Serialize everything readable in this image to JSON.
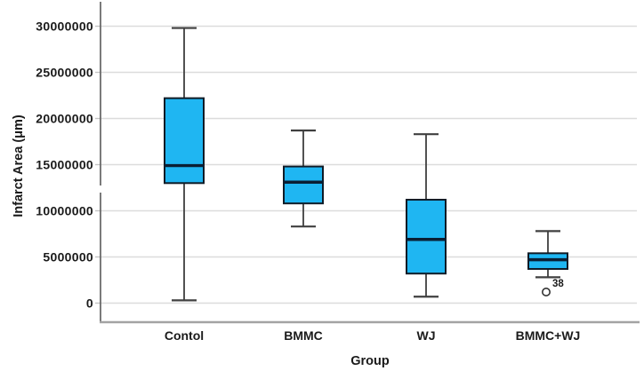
{
  "chart_data": {
    "type": "boxplot",
    "title": "",
    "xlabel": "Group",
    "ylabel": "Infarct Area  (μm)",
    "categories": [
      "Contol",
      "BMMC",
      "WJ",
      "BMMC+WJ"
    ],
    "y_ticks": [
      0,
      5000000,
      10000000,
      15000000,
      20000000,
      25000000,
      30000000
    ],
    "ylim": [
      0,
      30000000
    ],
    "grid": true,
    "legend": false,
    "series": [
      {
        "group": "Contol",
        "whisker_low": 300000,
        "q1": 13000000,
        "median": 14900000,
        "q3": 22200000,
        "whisker_high": 29800000,
        "outliers": []
      },
      {
        "group": "BMMC",
        "whisker_low": 8300000,
        "q1": 10800000,
        "median": 13100000,
        "q3": 14800000,
        "whisker_high": 18700000,
        "outliers": []
      },
      {
        "group": "WJ",
        "whisker_low": 700000,
        "q1": 3200000,
        "median": 6900000,
        "q3": 11200000,
        "whisker_high": 18300000,
        "outliers": []
      },
      {
        "group": "BMMC+WJ",
        "whisker_low": 2800000,
        "q1": 3700000,
        "median": 4700000,
        "q3": 5400000,
        "whisker_high": 7800000,
        "outliers": [
          {
            "value": 1200000,
            "label": "38"
          }
        ]
      }
    ],
    "colors": {
      "box_fill": "#1FB6F2",
      "box_stroke": "#101B26",
      "median": "#0A1E33",
      "whisker": "#3F3F3F",
      "gridline": "#DCDCDC",
      "y_axis": "#6B6B6B",
      "x_axis": "#A3A3A3",
      "text": "#1A1A1A",
      "outlier": "#333333"
    }
  }
}
